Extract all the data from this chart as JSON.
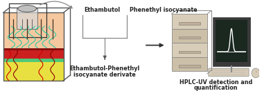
{
  "bg_color": "#ffffff",
  "label_ethambutol": "Ethambutol",
  "label_phenethyl": "Phenethyl isocyanate",
  "label_derivate_line1": "Ethambutol-Phenethyl",
  "label_derivate_line2": "isocyanate derivate",
  "label_hplc_line1": "HPLC-UV detection and",
  "label_hplc_line2": "quantification",
  "arrow_color": "#555555",
  "line_color": "#888888",
  "text_color": "#222222",
  "font_size": 5.8,
  "skin_beige": "#f5c8a0",
  "skin_yellow": "#e8e040",
  "skin_green": "#78b840",
  "skin_red": "#cc2020",
  "skin_darkred": "#aa1010",
  "hplc_beige": "#d8cdb8",
  "hplc_beige_dark": "#c0b098",
  "screen_bg": "#1a2a20",
  "screen_border": "#888888"
}
